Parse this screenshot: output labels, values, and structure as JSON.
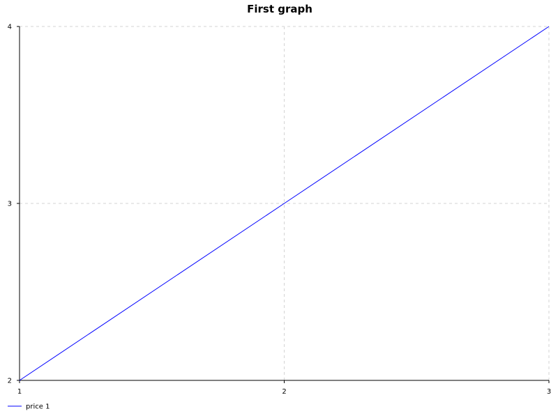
{
  "chart_data": {
    "type": "line",
    "title": "First graph",
    "xlabel": "",
    "ylabel": "",
    "xlim": [
      1,
      3
    ],
    "ylim": [
      2,
      4
    ],
    "x_ticks": [
      1,
      2,
      3
    ],
    "y_ticks": [
      2,
      3,
      4
    ],
    "grid": true,
    "legend_position": "bottom-left",
    "series": [
      {
        "name": "price 1",
        "color": "#0000ff",
        "x": [
          1,
          2,
          3
        ],
        "values": [
          2,
          3,
          4
        ]
      }
    ],
    "colors": {
      "axis": "#000000",
      "grid": "#d3d3d3",
      "background": "#ffffff"
    }
  }
}
